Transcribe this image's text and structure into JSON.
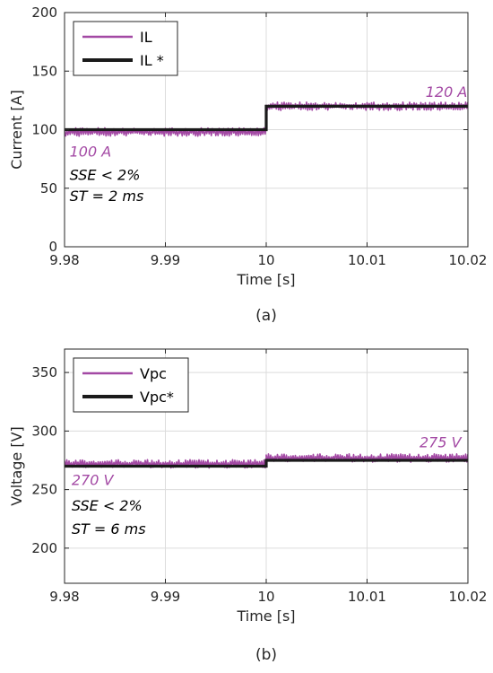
{
  "colors": {
    "measured": "#a349a4",
    "reference": "#1a1a1a",
    "axis": "#262626",
    "grid": "#dcdcdc"
  },
  "chart_data": [
    {
      "type": "line",
      "caption": "(a)",
      "xlabel": "Time [s]",
      "ylabel": "Current [A]",
      "xlim": [
        9.98,
        10.02
      ],
      "ylim": [
        0,
        200
      ],
      "xticks": [
        9.98,
        9.99,
        10,
        10.01,
        10.02
      ],
      "xtick_labels": [
        "9.98",
        "9.99",
        "10",
        "10.01",
        "10.02"
      ],
      "yticks": [
        0,
        50,
        100,
        150,
        200
      ],
      "ytick_labels": [
        "0",
        "50",
        "100",
        "150",
        "200"
      ],
      "grid": true,
      "legend": "top-left",
      "series": [
        {
          "name": "IL",
          "color": "#a349a4",
          "style": "ripple",
          "segments": [
            {
              "x": [
                9.98,
                10.0
              ],
              "center": 98,
              "amplitude": 4
            },
            {
              "x": [
                10.0,
                10.02
              ],
              "center": 120,
              "amplitude": 4
            }
          ]
        },
        {
          "name": "IL *",
          "color": "#1a1a1a",
          "style": "step",
          "x": [
            9.98,
            10.0,
            10.0,
            10.02
          ],
          "y": [
            100,
            100,
            120,
            120
          ]
        }
      ],
      "annotations": [
        {
          "text": "100 A",
          "x": 9.9805,
          "y": 77,
          "color": "#a349a4"
        },
        {
          "text": "120 A",
          "x": 10.0158,
          "y": 128,
          "color": "#a349a4"
        },
        {
          "text": "SSE < 2%",
          "x": 9.9805,
          "y": 57,
          "color": "#000000"
        },
        {
          "text": "ST = 2 ms",
          "x": 9.9805,
          "y": 39,
          "color": "#000000"
        }
      ]
    },
    {
      "type": "line",
      "caption": "(b)",
      "xlabel": "Time [s]",
      "ylabel": "Voltage [V]",
      "xlim": [
        9.98,
        10.02
      ],
      "ylim": [
        170,
        370
      ],
      "xticks": [
        9.98,
        9.99,
        10,
        10.01,
        10.02
      ],
      "xtick_labels": [
        "9.98",
        "9.99",
        "10",
        "10.01",
        "10.02"
      ],
      "yticks": [
        200,
        250,
        300,
        350
      ],
      "ytick_labels": [
        "200",
        "250",
        "300",
        "350"
      ],
      "grid": true,
      "legend": "top-left",
      "series": [
        {
          "name": "Vpc",
          "color": "#a349a4",
          "style": "ripple",
          "segments": [
            {
              "x": [
                9.98,
                10.0
              ],
              "center": 272,
              "amplitude": 4
            },
            {
              "x": [
                10.0,
                10.02
              ],
              "center": 277,
              "amplitude": 4
            }
          ]
        },
        {
          "name": "Vpc*",
          "color": "#1a1a1a",
          "style": "step",
          "x": [
            9.98,
            10.0,
            10.0,
            10.02
          ],
          "y": [
            270,
            270,
            275,
            275
          ]
        }
      ],
      "annotations": [
        {
          "text": "270 V",
          "x": 9.9807,
          "y": 254,
          "color": "#a349a4"
        },
        {
          "text": "275 V",
          "x": 10.0152,
          "y": 286,
          "color": "#a349a4"
        },
        {
          "text": "SSE < 2%",
          "x": 9.9807,
          "y": 232,
          "color": "#000000"
        },
        {
          "text": "ST = 6 ms",
          "x": 9.9807,
          "y": 212,
          "color": "#000000"
        }
      ]
    }
  ]
}
